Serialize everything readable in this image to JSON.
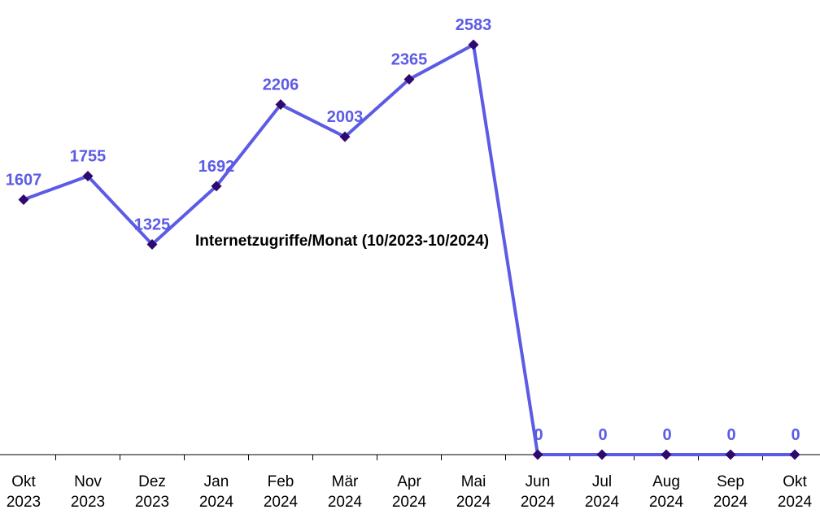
{
  "chart_data": {
    "type": "line",
    "title": "Internetzugriffe/Monat (10/2023-10/2024)",
    "xlabel": "",
    "ylabel": "",
    "categories": [
      [
        "Okt",
        "2023"
      ],
      [
        "Nov",
        "2023"
      ],
      [
        "Dez",
        "2023"
      ],
      [
        "Jan",
        "2024"
      ],
      [
        "Feb",
        "2024"
      ],
      [
        "Mär",
        "2024"
      ],
      [
        "Apr",
        "2024"
      ],
      [
        "Mai",
        "2024"
      ],
      [
        "Jun",
        "2024"
      ],
      [
        "Jul",
        "2024"
      ],
      [
        "Aug",
        "2024"
      ],
      [
        "Sep",
        "2024"
      ],
      [
        "Okt",
        "2024"
      ]
    ],
    "series": [
      {
        "values": [
          1607,
          1755,
          1325,
          1692,
          2206,
          2003,
          2365,
          2583,
          0,
          0,
          0,
          0,
          0
        ]
      }
    ],
    "ylim": [
      0,
      2583
    ],
    "grid": false,
    "legend": "none",
    "data_labels": true,
    "colors": {
      "line": "#5b5be6",
      "marker": "#2e0a6e",
      "label": "#5b5be6",
      "axis": "#000000"
    }
  }
}
